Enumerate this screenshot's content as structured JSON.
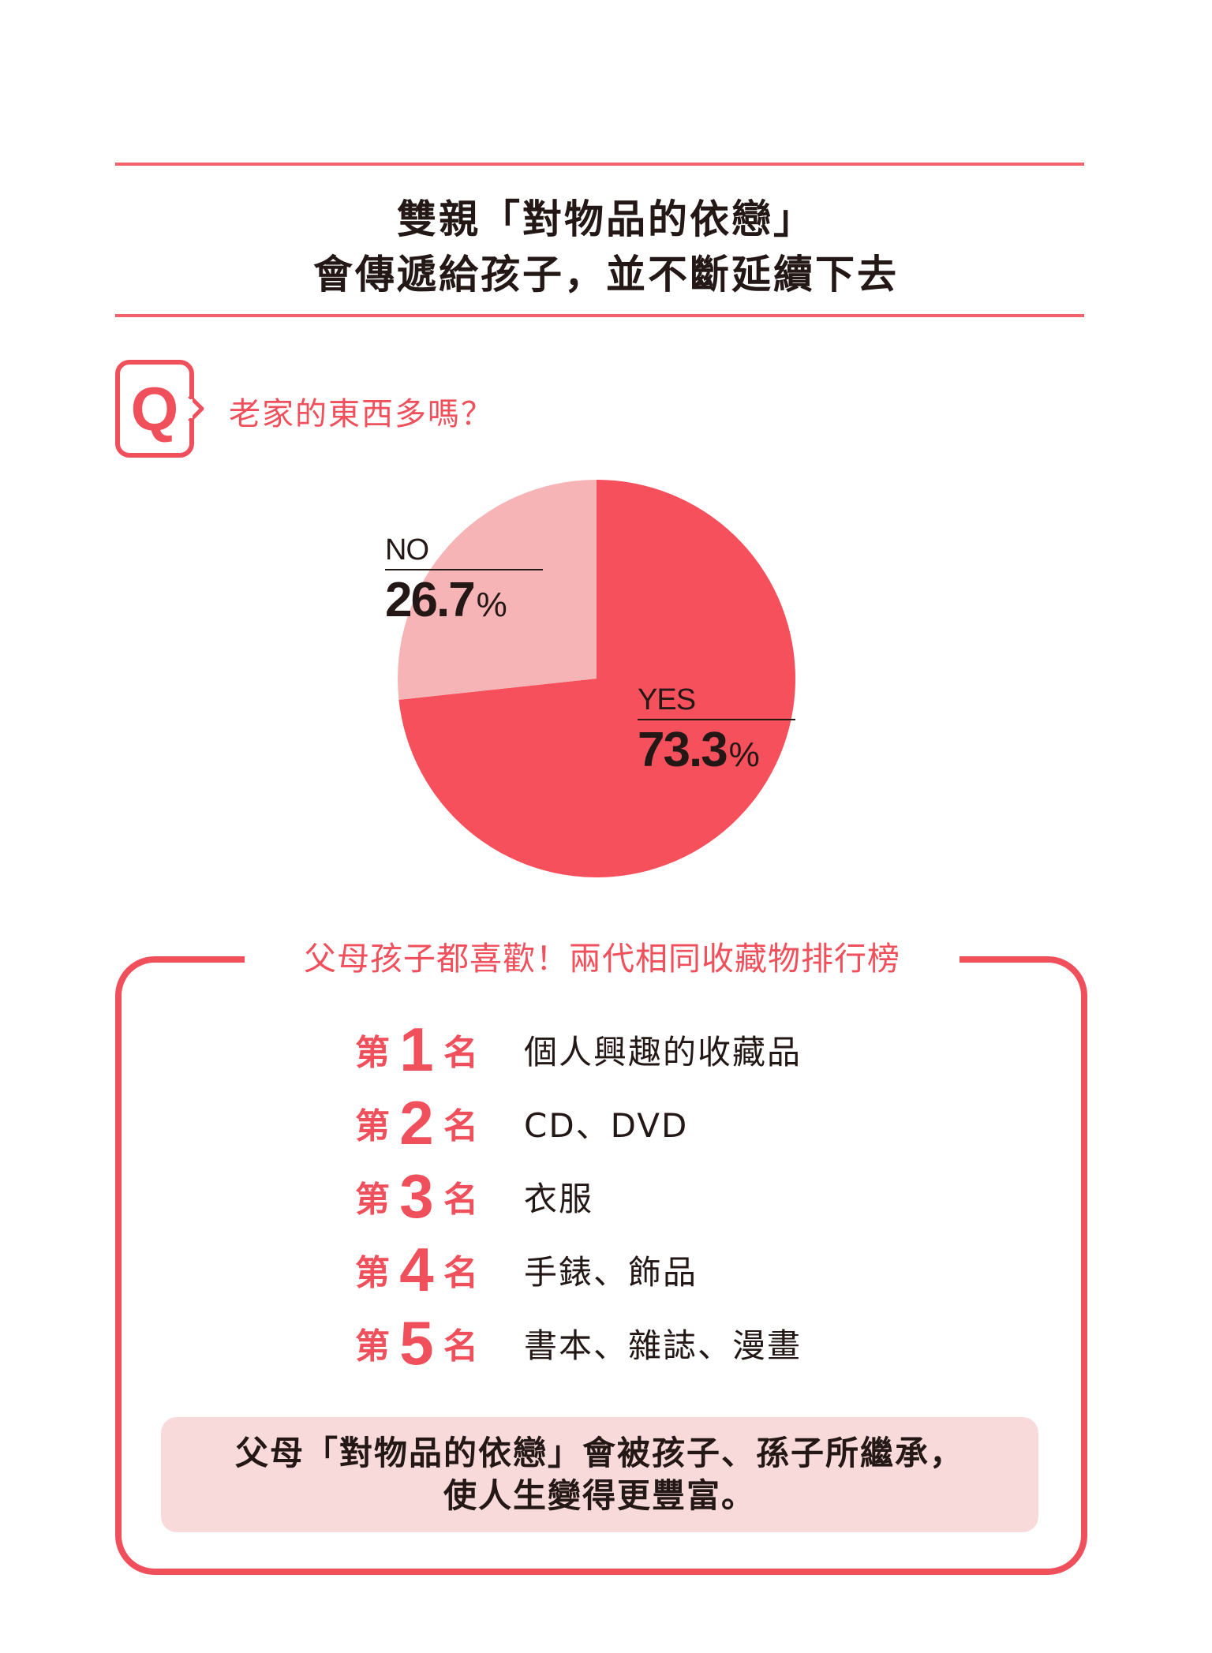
{
  "header": {
    "title_line1": "雙親「對物品的依戀」",
    "title_line2": "會傳遞給孩子，並不斷延續下去"
  },
  "question": {
    "badge": "Q",
    "text": "老家的東西多嗎？"
  },
  "chart_data": {
    "type": "pie",
    "title": "",
    "unit": "%",
    "slices": [
      {
        "label": "YES",
        "value": 73.3,
        "value_text": "73.3",
        "color": "#f5505c"
      },
      {
        "label": "NO",
        "value": 26.7,
        "value_text": "26.7",
        "color": "#f7b4b6"
      }
    ]
  },
  "ranking": {
    "heading": "父母孩子都喜歡！兩代相同收藏物排行榜",
    "prefix": "第",
    "suffix": "名",
    "items": [
      {
        "rank": "1",
        "label": "個人興趣的收藏品"
      },
      {
        "rank": "2",
        "label": "CD、DVD"
      },
      {
        "rank": "3",
        "label": "衣服"
      },
      {
        "rank": "4",
        "label": "手錶、飾品"
      },
      {
        "rank": "5",
        "label": "書本、雜誌、漫畫"
      }
    ]
  },
  "conclusion": {
    "line1": "父母「對物品的依戀」會被孩子、孫子所繼承，",
    "line2": "使人生變得更豐富。"
  },
  "colors": {
    "accent": "#f0505c",
    "pie_yes": "#f5505c",
    "pie_no": "#f7b4b6",
    "conclusion_bg": "#f9dadb"
  }
}
